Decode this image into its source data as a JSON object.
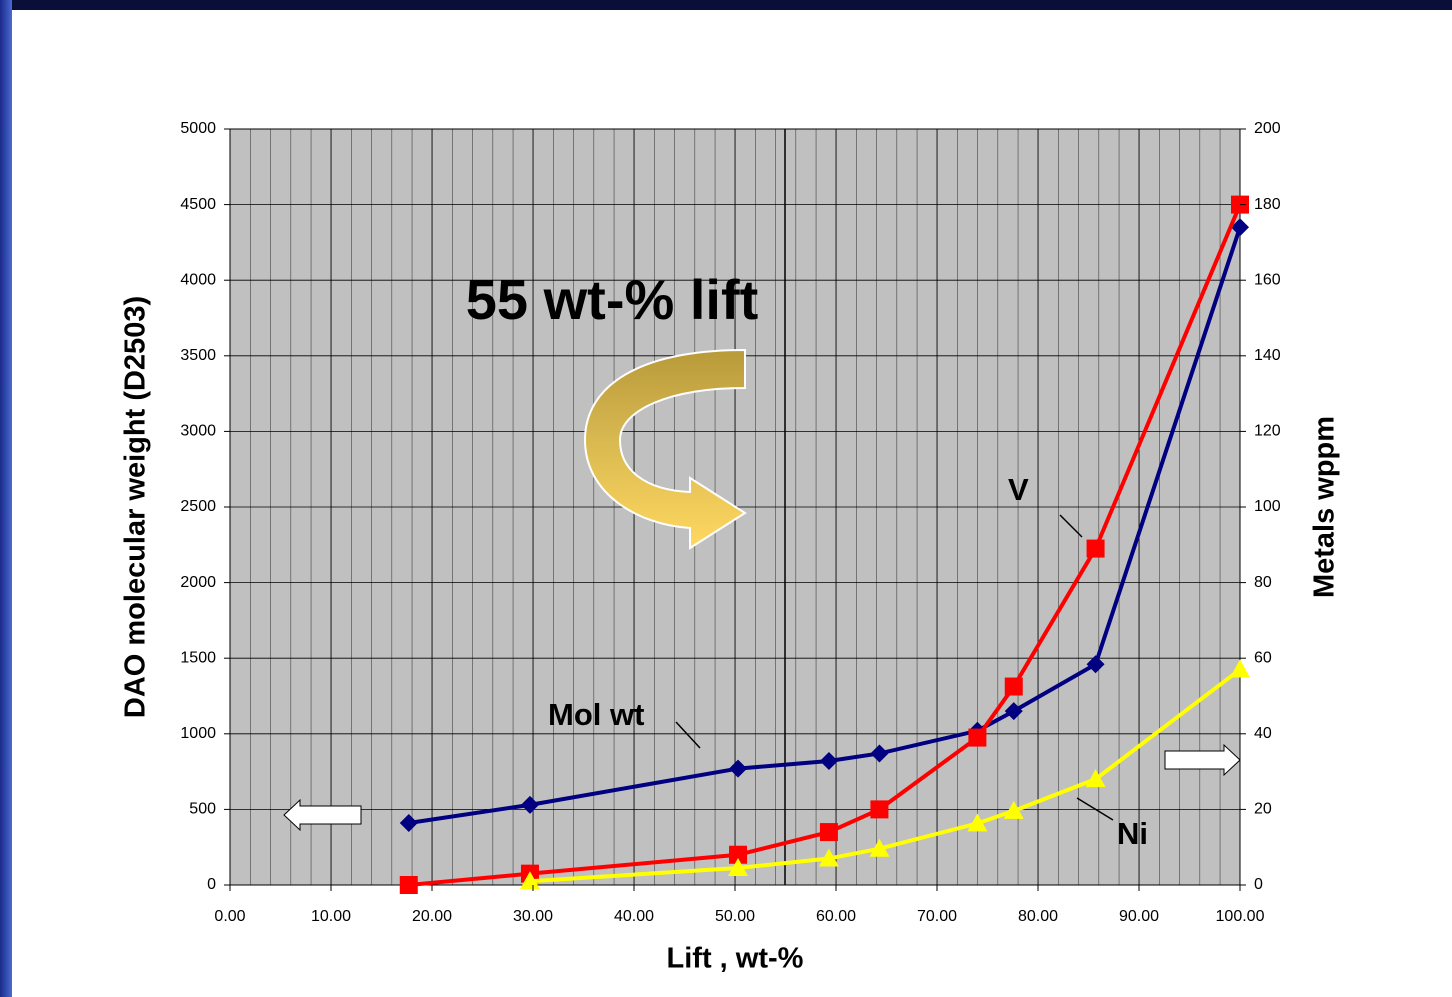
{
  "chart_data": {
    "type": "line",
    "annotations": [
      "55 wt-% lift",
      "Mol wt",
      "V",
      "Ni"
    ],
    "xlabel": "Lift , wt-%",
    "ylabel": "DAO molecular weight (D2503)",
    "y2label": "Metals wppm",
    "xlim": [
      0,
      100
    ],
    "xticks": [
      {
        "value": 0,
        "label": "0.00"
      },
      {
        "value": 10,
        "label": "10.00"
      },
      {
        "value": 20,
        "label": "20.00"
      },
      {
        "value": 30,
        "label": "30.00"
      },
      {
        "value": 40,
        "label": "40.00"
      },
      {
        "value": 50,
        "label": "50.00"
      },
      {
        "value": 60,
        "label": "60.00"
      },
      {
        "value": 70,
        "label": "70.00"
      },
      {
        "value": 80,
        "label": "80.00"
      },
      {
        "value": 90,
        "label": "90.00"
      },
      {
        "value": 100,
        "label": "100.00"
      }
    ],
    "ylim": [
      0,
      5000
    ],
    "yticks": [
      0,
      500,
      1000,
      1500,
      2000,
      2500,
      3000,
      3500,
      4000,
      4500,
      5000
    ],
    "y2lim": [
      0,
      200
    ],
    "y2ticks": [
      0,
      20,
      40,
      60,
      80,
      100,
      120,
      140,
      160,
      180,
      200
    ],
    "grid": true,
    "series": [
      {
        "name": "Mol wt",
        "color": "#000080",
        "marker": "diamond",
        "axis": "y",
        "x": [
          17.7,
          29.7,
          50.3,
          59.3,
          64.3,
          74,
          77.6,
          85.7,
          100
        ],
        "values": [
          410,
          530,
          770,
          820,
          870,
          1020,
          1150,
          1460,
          4350
        ]
      },
      {
        "name": "V",
        "color": "#ff0000",
        "marker": "square",
        "axis": "y2",
        "x": [
          17.7,
          29.7,
          50.3,
          59.3,
          64.3,
          74,
          77.6,
          85.7,
          100
        ],
        "values": [
          0,
          3,
          8,
          14,
          20,
          39,
          52.5,
          89,
          180
        ]
      },
      {
        "name": "Ni",
        "color": "#ffff00",
        "marker": "triangle",
        "axis": "y2",
        "x": [
          29.7,
          50.3,
          59.3,
          64.3,
          74,
          77.6,
          85.7,
          100
        ],
        "values": [
          1,
          4.5,
          7,
          9.6,
          16.3,
          19.6,
          28,
          57
        ]
      }
    ]
  }
}
